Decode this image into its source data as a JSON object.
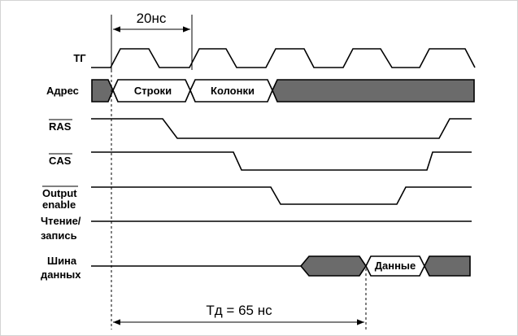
{
  "timing_diagram": {
    "top_interval": "20нс",
    "bottom_interval": "Тд = 65 нс",
    "signals": {
      "clock": "ТГ",
      "address": "Адрес",
      "ras": "RAS",
      "cas": "CAS",
      "output_enable_line1": "Output",
      "output_enable_line2": "enable",
      "read_write_line1": "Чтение/",
      "read_write_line2": "запись",
      "bus_line1": "Шина",
      "bus_line2": "данных"
    },
    "address_segments": {
      "row": "Строки",
      "column": "Колонки"
    },
    "bus_segments": {
      "data": "Данные"
    },
    "colors": {
      "background": "#ffffff",
      "line": "#000000",
      "fill_invalid": "#6b6b6b",
      "frame": "#d4d4d4"
    }
  }
}
